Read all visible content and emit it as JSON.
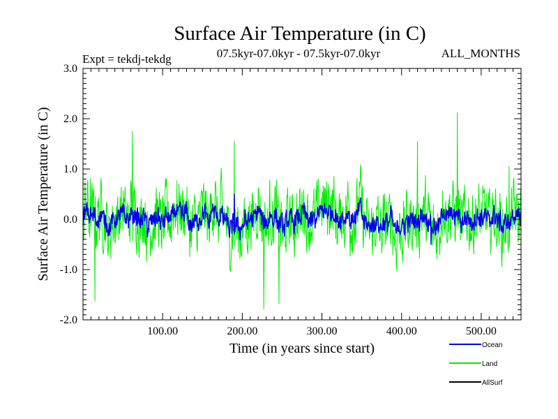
{
  "chart_data": {
    "type": "line",
    "title": "Surface Air Temperature (in C)",
    "subtitle": "07.5kyr-07.0kyr - 07.5kyr-07.0kyr",
    "expt_label": "Expt = tekdj-tekdg",
    "months_label": "ALL_MONTHS",
    "xlabel": "Time (in years since start)",
    "ylabel": "Surface Air Temperature (in C)",
    "xlim": [
      0,
      550
    ],
    "ylim": [
      -2.0,
      3.0
    ],
    "x_ticks": [
      100,
      200,
      300,
      400,
      500
    ],
    "x_tick_labels": [
      "100.00",
      "200.00",
      "300.00",
      "400.00",
      "500.00"
    ],
    "y_ticks": [
      -2,
      -1,
      0,
      1,
      2,
      3
    ],
    "y_tick_labels": [
      "-2.0",
      "-1.0",
      "0.0",
      "1.0",
      "2.0",
      "3.0"
    ],
    "x_step": 0.5,
    "series": [
      {
        "name": "Land",
        "color": "#00ee00",
        "noise_amplitude": 0.55,
        "notable_points": [
          {
            "x": 62,
            "y": 1.75
          },
          {
            "x": 15,
            "y": -1.62
          },
          {
            "x": 227,
            "y": -1.78
          },
          {
            "x": 246,
            "y": -1.68
          },
          {
            "x": 470,
            "y": 2.12
          },
          {
            "x": 190,
            "y": 1.55
          },
          {
            "x": 420,
            "y": 1.55
          },
          {
            "x": 535,
            "y": 1.05
          }
        ]
      },
      {
        "name": "Ocean",
        "color": "#0000ee",
        "noise_amplitude": 0.16,
        "notable_points": [
          {
            "x": 190,
            "y": 0.5
          },
          {
            "x": 437,
            "y": -0.5
          }
        ]
      },
      {
        "name": "AllSurf",
        "color": "#000000",
        "noise_amplitude": 0.0,
        "notable_points": []
      }
    ],
    "legend": {
      "position": "bottom-right",
      "entries": [
        {
          "label": "Ocean",
          "color": "#0000ee"
        },
        {
          "label": "Land",
          "color": "#00ee00"
        },
        {
          "label": "AllSurf",
          "color": "#000000"
        }
      ]
    }
  }
}
